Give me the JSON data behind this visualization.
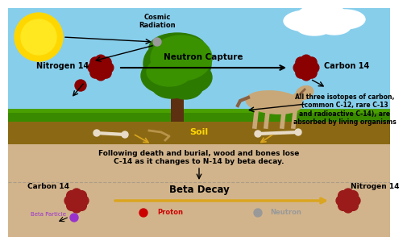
{
  "bg_sky": "#87CEEB",
  "bg_underground": "#D2B48C",
  "bg_soil": "#8B6914",
  "grass_color": "#3A8A00",
  "sun_color": "#FFD700",
  "nucleus_color": "#8B0000",
  "proton_color": "#CC0000",
  "neutron_color": "#999999",
  "beta_particle_color": "#9932CC",
  "arrow_color": "#000000",
  "soil_arrow_color": "#DAA520",
  "beta_arrow_color": "#DAA520",
  "white": "#FFFFFF",
  "cosmic_radiation_label": "Cosmic\nRadiation",
  "nitrogen14_top_label": "Nitrogen 14",
  "carbon14_top_label": "Carbon 14",
  "neutron_capture_label": "Neutron Capture",
  "isotopes_text": "All three isotopes of carbon,\n(common C-12, rare C-13\nand radioactive C-14), are\nabsorbed by living organisms",
  "soil_label": "Soil",
  "burial_text": "Following death and burial, wood and bones lose\nC-14 as it changes to N-14 by beta decay.",
  "beta_decay_label": "Beta Decay",
  "carbon14_bot_label": "Carbon 14",
  "nitrogen14_bot_label": "Nitrogen 14",
  "beta_particle_label": "Beta Particle",
  "proton_label": "Proton",
  "neutron_label": "Neutron"
}
